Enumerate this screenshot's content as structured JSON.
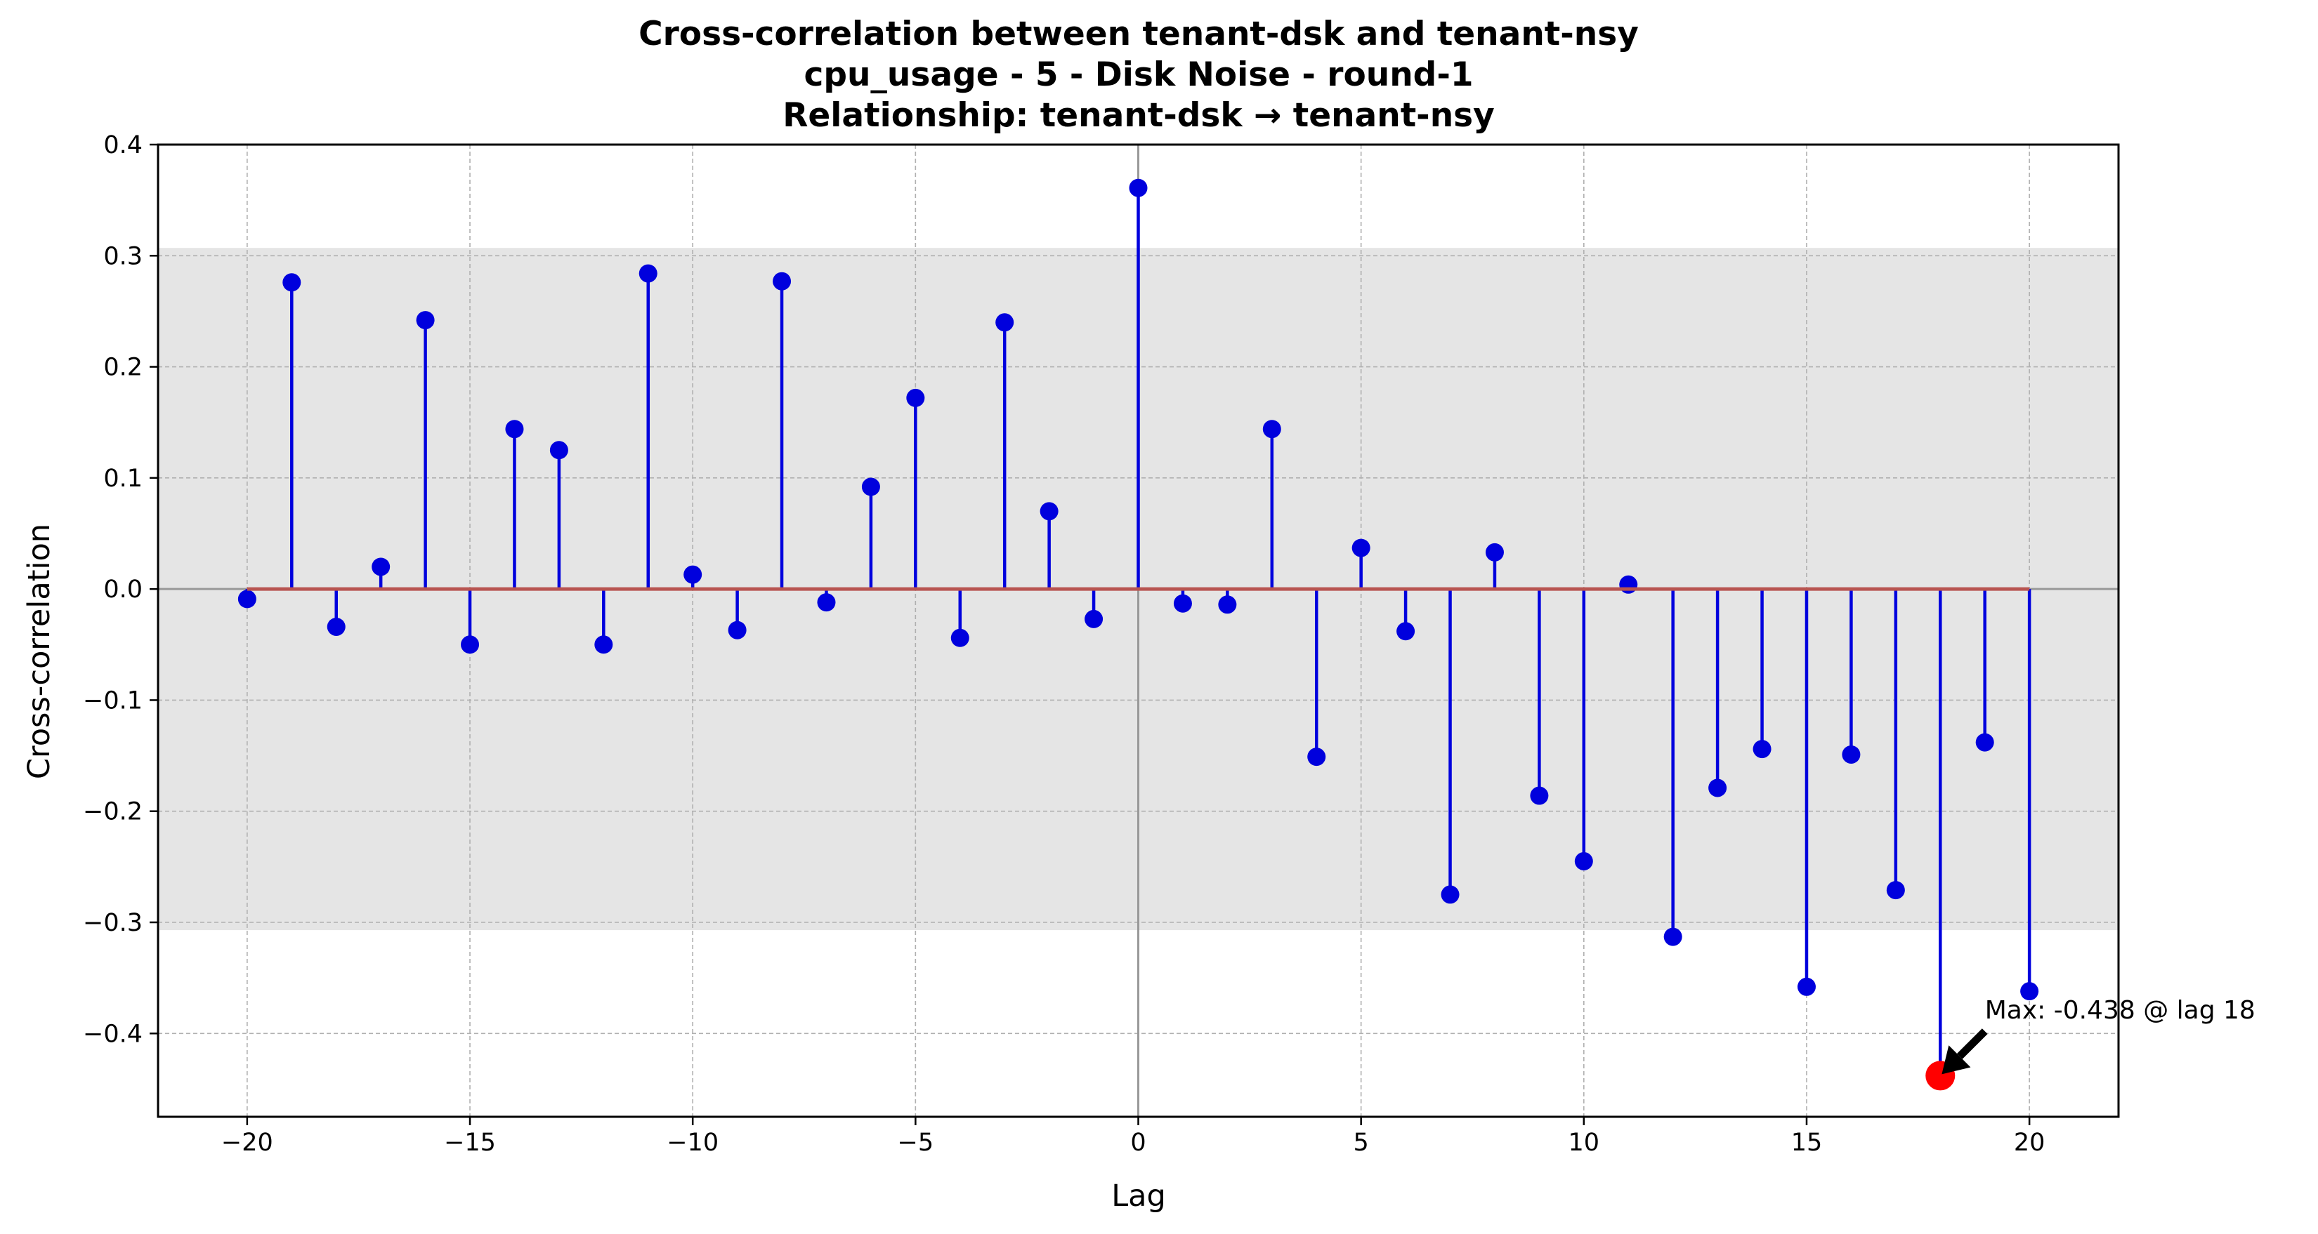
{
  "chart_data": {
    "type": "stem",
    "title_lines": [
      "Cross-correlation between tenant-dsk and tenant-nsy",
      "cpu_usage - 5 - Disk Noise - round-1",
      "Relationship: tenant-dsk → tenant-nsy"
    ],
    "xlabel": "Lag",
    "ylabel": "Cross-correlation",
    "xlim": [
      -22,
      22
    ],
    "ylim": [
      -0.475,
      0.4
    ],
    "xticks": [
      -20,
      -15,
      -10,
      -5,
      0,
      5,
      10,
      15,
      20
    ],
    "xtick_labels": [
      "−20",
      "−15",
      "−10",
      "−5",
      "0",
      "5",
      "10",
      "15",
      "20"
    ],
    "yticks": [
      -0.4,
      -0.3,
      -0.2,
      -0.1,
      0.0,
      0.1,
      0.2,
      0.3,
      0.4
    ],
    "ytick_labels": [
      "−0.4",
      "−0.3",
      "−0.2",
      "−0.1",
      "0.0",
      "0.1",
      "0.2",
      "0.3",
      "0.4"
    ],
    "grid": true,
    "confidence_band": [
      -0.307,
      0.307
    ],
    "x": [
      -20,
      -19,
      -18,
      -17,
      -16,
      -15,
      -14,
      -13,
      -12,
      -11,
      -10,
      -9,
      -8,
      -7,
      -6,
      -5,
      -4,
      -3,
      -2,
      -1,
      0,
      1,
      2,
      3,
      4,
      5,
      6,
      7,
      8,
      9,
      10,
      11,
      12,
      13,
      14,
      15,
      16,
      17,
      18,
      19,
      20
    ],
    "values": [
      -0.009,
      0.276,
      -0.034,
      0.02,
      0.242,
      -0.05,
      0.144,
      0.125,
      -0.05,
      0.284,
      0.013,
      -0.037,
      0.277,
      -0.012,
      0.092,
      0.172,
      -0.044,
      0.24,
      0.07,
      -0.027,
      0.361,
      -0.013,
      -0.014,
      0.144,
      -0.151,
      0.037,
      -0.038,
      -0.275,
      0.033,
      -0.186,
      -0.245,
      0.004,
      -0.313,
      -0.179,
      -0.144,
      -0.358,
      -0.149,
      -0.271,
      -0.438,
      -0.138,
      -0.362
    ],
    "max_point": {
      "x": 18,
      "y": -0.438
    },
    "annotation": "Max: -0.438 @ lag 18",
    "colors": {
      "stem": "#0000dd",
      "marker": "#0000dd",
      "baseline": "#b85450",
      "band": "#e5e5e5",
      "max_marker": "#ff0000",
      "grid": "#b0b0b0",
      "zero_line": "#999999"
    }
  }
}
